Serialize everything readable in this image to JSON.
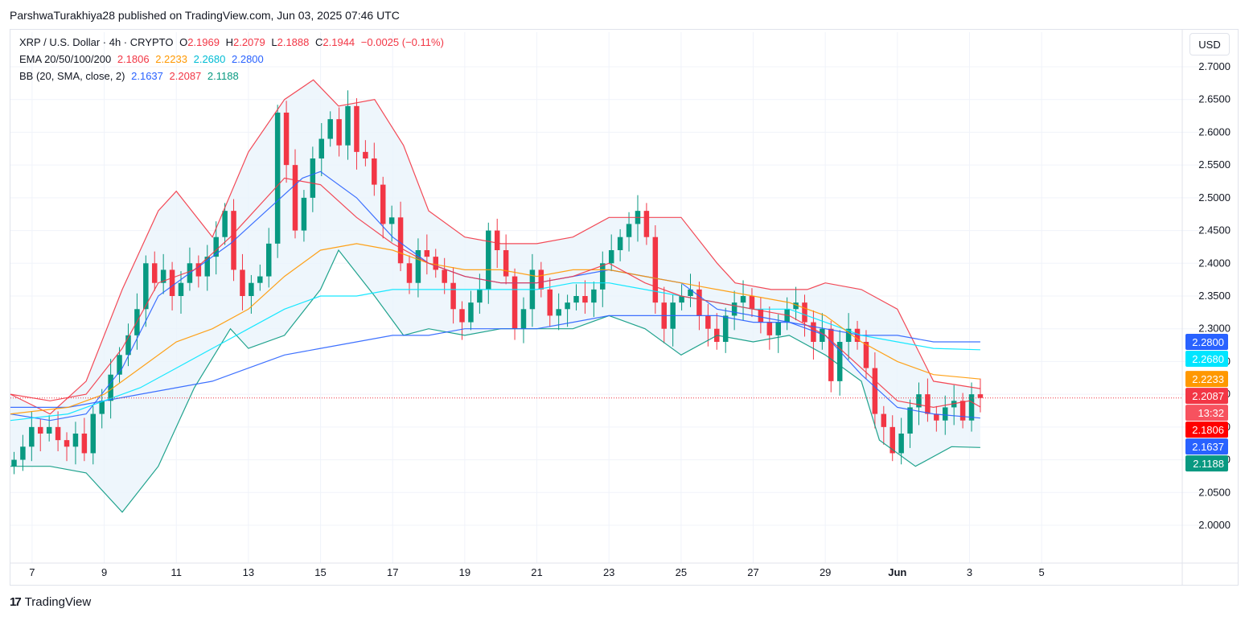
{
  "header": {
    "attribution": "ParshwaTurakhiya28 published on TradingView.com, Jun 03, 2025 07:46 UTC"
  },
  "legend": {
    "symbol": "XRP / U.S. Dollar · 4h · CRYPTO",
    "o_label": "O",
    "o_value": "2.1969",
    "h_label": "H",
    "h_value": "2.2079",
    "l_label": "L",
    "l_value": "2.1888",
    "c_label": "C",
    "c_value": "2.1944",
    "change": "−0.0025 (−0.11%)",
    "ema_label": "EMA 20/50/100/200",
    "ema_values": [
      "2.1806",
      "2.2233",
      "2.2680",
      "2.2800"
    ],
    "bb_label": "BB (20, SMA, close, 2)",
    "bb_values": [
      "2.1637",
      "2.2087",
      "2.1188"
    ]
  },
  "currency_button": "USD",
  "footer": {
    "logo_text": "TradingView",
    "logo_mark": "17"
  },
  "colors": {
    "up": "#089981",
    "down": "#f23645",
    "ema20": "#f23645",
    "ema50": "#ff9800",
    "ema100": "#00e5ff",
    "ema200": "#2962ff",
    "bb_basis": "#2962ff",
    "bb_upper": "#f23645",
    "bb_lower": "#089981",
    "bb_fill": "#eaf4fb"
  },
  "chart_data": {
    "type": "candlestick",
    "title": "XRP / U.S. Dollar · 4h · CRYPTO",
    "ylim": [
      1.96,
      2.74
    ],
    "y_ticks": [
      "2.0000",
      "2.0500",
      "2.1000",
      "2.1500",
      "2.2000",
      "2.2500",
      "2.3000",
      "2.3500",
      "2.4000",
      "2.4500",
      "2.5000",
      "2.5500",
      "2.6000",
      "2.6500",
      "2.7000"
    ],
    "x_ticks": [
      "7",
      "9",
      "11",
      "13",
      "15",
      "17",
      "19",
      "21",
      "23",
      "25",
      "27",
      "29",
      "Jun",
      "3",
      "5"
    ],
    "x_tick_days": [
      7,
      9,
      11,
      13,
      15,
      17,
      19,
      21,
      23,
      25,
      27,
      29,
      31,
      33,
      35
    ],
    "x_range_days": [
      6.4,
      38.9
    ],
    "price_labels": [
      {
        "text": "2.2800",
        "value": 2.28,
        "color": "#2962ff"
      },
      {
        "text": "2.2680",
        "value": 2.268,
        "color": "#00e5ff"
      },
      {
        "text": "2.2233",
        "value": 2.2233,
        "color": "#ff9800"
      },
      {
        "text": "2.2087",
        "value": 2.2087,
        "color": "#f23645"
      },
      {
        "text": "13:32",
        "value": 2.1944,
        "color": "#f7525f"
      },
      {
        "text": "2.1806",
        "value": 2.1806,
        "color": "#ff0000"
      },
      {
        "text": "2.1637",
        "value": 2.1637,
        "color": "#2962ff"
      },
      {
        "text": "2.1188",
        "value": 2.1188,
        "color": "#089981"
      }
    ],
    "last_price": 2.1944,
    "candle_closes": [
      2.1,
      2.12,
      2.15,
      2.14,
      2.15,
      2.13,
      2.12,
      2.14,
      2.11,
      2.17,
      2.19,
      2.23,
      2.26,
      2.29,
      2.33,
      2.4,
      2.37,
      2.39,
      2.35,
      2.37,
      2.4,
      2.38,
      2.41,
      2.44,
      2.48,
      2.39,
      2.35,
      2.37,
      2.38,
      2.43,
      2.63,
      2.55,
      2.45,
      2.5,
      2.56,
      2.59,
      2.62,
      2.58,
      2.64,
      2.57,
      2.56,
      2.52,
      2.46,
      2.47,
      2.4,
      2.37,
      2.42,
      2.41,
      2.39,
      2.37,
      2.33,
      2.31,
      2.34,
      2.36,
      2.45,
      2.42,
      2.38,
      2.3,
      2.33,
      2.39,
      2.36,
      2.32,
      2.33,
      2.34,
      2.35,
      2.34,
      2.36,
      2.4,
      2.42,
      2.44,
      2.46,
      2.48,
      2.44,
      2.34,
      2.3,
      2.34,
      2.35,
      2.36,
      2.32,
      2.3,
      2.28,
      2.32,
      2.34,
      2.35,
      2.33,
      2.31,
      2.29,
      2.31,
      2.33,
      2.34,
      2.31,
      2.28,
      2.3,
      2.22,
      2.28,
      2.3,
      2.28,
      2.24,
      2.17,
      2.15,
      2.11,
      2.14,
      2.18,
      2.2,
      2.17,
      2.16,
      2.18,
      2.19,
      2.16,
      2.2,
      2.1944
    ],
    "ema20": [
      [
        6.4,
        2.2
      ],
      [
        7.5,
        2.19
      ],
      [
        8.5,
        2.2
      ],
      [
        9.5,
        2.27
      ],
      [
        10.5,
        2.37
      ],
      [
        11.5,
        2.39
      ],
      [
        12.5,
        2.44
      ],
      [
        13,
        2.47
      ],
      [
        14,
        2.53
      ],
      [
        15,
        2.52
      ],
      [
        16,
        2.47
      ],
      [
        17,
        2.43
      ],
      [
        18,
        2.4
      ],
      [
        19,
        2.38
      ],
      [
        20,
        2.37
      ],
      [
        21,
        2.37
      ],
      [
        22,
        2.38
      ],
      [
        23,
        2.4
      ],
      [
        24,
        2.37
      ],
      [
        25,
        2.35
      ],
      [
        26,
        2.34
      ],
      [
        27,
        2.33
      ],
      [
        28,
        2.32
      ],
      [
        29,
        2.29
      ],
      [
        30,
        2.24
      ],
      [
        31,
        2.19
      ],
      [
        32,
        2.18
      ],
      [
        33,
        2.19
      ],
      [
        33.3,
        2.1806
      ]
    ],
    "ema50": [
      [
        6.4,
        2.17
      ],
      [
        8,
        2.18
      ],
      [
        9,
        2.2
      ],
      [
        10,
        2.24
      ],
      [
        11,
        2.28
      ],
      [
        12,
        2.3
      ],
      [
        13,
        2.33
      ],
      [
        14,
        2.38
      ],
      [
        15,
        2.42
      ],
      [
        16,
        2.43
      ],
      [
        17,
        2.42
      ],
      [
        18,
        2.4
      ],
      [
        19,
        2.39
      ],
      [
        20,
        2.39
      ],
      [
        21,
        2.38
      ],
      [
        22,
        2.39
      ],
      [
        23,
        2.39
      ],
      [
        24,
        2.38
      ],
      [
        25,
        2.37
      ],
      [
        26,
        2.36
      ],
      [
        27,
        2.35
      ],
      [
        28,
        2.34
      ],
      [
        29,
        2.32
      ],
      [
        30,
        2.28
      ],
      [
        31,
        2.25
      ],
      [
        32,
        2.23
      ],
      [
        33.3,
        2.2233
      ]
    ],
    "ema100": [
      [
        6.4,
        2.16
      ],
      [
        8,
        2.17
      ],
      [
        9,
        2.19
      ],
      [
        10,
        2.21
      ],
      [
        11,
        2.24
      ],
      [
        12,
        2.27
      ],
      [
        13,
        2.3
      ],
      [
        14,
        2.33
      ],
      [
        15,
        2.35
      ],
      [
        16,
        2.35
      ],
      [
        17,
        2.36
      ],
      [
        18,
        2.36
      ],
      [
        19,
        2.36
      ],
      [
        20,
        2.36
      ],
      [
        21,
        2.36
      ],
      [
        22,
        2.37
      ],
      [
        23,
        2.37
      ],
      [
        24,
        2.36
      ],
      [
        25,
        2.35
      ],
      [
        26,
        2.34
      ],
      [
        27,
        2.33
      ],
      [
        28,
        2.33
      ],
      [
        29,
        2.31
      ],
      [
        30,
        2.29
      ],
      [
        31,
        2.28
      ],
      [
        32,
        2.27
      ],
      [
        33.3,
        2.268
      ]
    ],
    "ema200": [
      [
        6.4,
        2.18
      ],
      [
        8,
        2.18
      ],
      [
        9,
        2.19
      ],
      [
        10,
        2.2
      ],
      [
        11,
        2.21
      ],
      [
        12,
        2.22
      ],
      [
        13,
        2.24
      ],
      [
        14,
        2.26
      ],
      [
        15,
        2.27
      ],
      [
        16,
        2.28
      ],
      [
        17,
        2.29
      ],
      [
        18,
        2.29
      ],
      [
        19,
        2.3
      ],
      [
        20,
        2.3
      ],
      [
        21,
        2.3
      ],
      [
        22,
        2.31
      ],
      [
        23,
        2.32
      ],
      [
        24,
        2.32
      ],
      [
        25,
        2.32
      ],
      [
        26,
        2.32
      ],
      [
        27,
        2.31
      ],
      [
        28,
        2.31
      ],
      [
        29,
        2.3
      ],
      [
        30,
        2.29
      ],
      [
        31,
        2.29
      ],
      [
        32,
        2.28
      ],
      [
        33.3,
        2.28
      ]
    ],
    "bb_upper": [
      [
        6.4,
        2.2
      ],
      [
        7.5,
        2.17
      ],
      [
        8.5,
        2.22
      ],
      [
        9.5,
        2.36
      ],
      [
        10.5,
        2.48
      ],
      [
        11,
        2.51
      ],
      [
        12,
        2.44
      ],
      [
        13,
        2.57
      ],
      [
        14,
        2.65
      ],
      [
        14.8,
        2.68
      ],
      [
        15.5,
        2.64
      ],
      [
        16.5,
        2.65
      ],
      [
        17.3,
        2.58
      ],
      [
        18,
        2.48
      ],
      [
        19,
        2.44
      ],
      [
        20,
        2.43
      ],
      [
        21,
        2.43
      ],
      [
        22,
        2.44
      ],
      [
        23,
        2.47
      ],
      [
        24,
        2.47
      ],
      [
        25,
        2.47
      ],
      [
        26,
        2.4
      ],
      [
        26.5,
        2.37
      ],
      [
        27.5,
        2.36
      ],
      [
        28.5,
        2.36
      ],
      [
        29,
        2.37
      ],
      [
        30,
        2.36
      ],
      [
        31,
        2.33
      ],
      [
        32,
        2.22
      ],
      [
        33.3,
        2.2087
      ]
    ],
    "bb_basis": [
      [
        6.4,
        2.17
      ],
      [
        7.5,
        2.16
      ],
      [
        8.5,
        2.17
      ],
      [
        9.5,
        2.24
      ],
      [
        10.5,
        2.35
      ],
      [
        11.5,
        2.39
      ],
      [
        12.5,
        2.43
      ],
      [
        13.5,
        2.48
      ],
      [
        14.5,
        2.53
      ],
      [
        15,
        2.54
      ],
      [
        16,
        2.5
      ],
      [
        17,
        2.44
      ],
      [
        18,
        2.4
      ],
      [
        19,
        2.38
      ],
      [
        20,
        2.37
      ],
      [
        21,
        2.37
      ],
      [
        22,
        2.38
      ],
      [
        23,
        2.39
      ],
      [
        24,
        2.38
      ],
      [
        25,
        2.37
      ],
      [
        26,
        2.33
      ],
      [
        27,
        2.32
      ],
      [
        28,
        2.31
      ],
      [
        29,
        2.29
      ],
      [
        30,
        2.23
      ],
      [
        31,
        2.18
      ],
      [
        32,
        2.17
      ],
      [
        33.3,
        2.1637
      ]
    ],
    "bb_lower": [
      [
        6.4,
        2.09
      ],
      [
        7.5,
        2.09
      ],
      [
        8.5,
        2.08
      ],
      [
        9.5,
        2.02
      ],
      [
        10.5,
        2.09
      ],
      [
        11.5,
        2.21
      ],
      [
        12.5,
        2.3
      ],
      [
        13,
        2.27
      ],
      [
        14,
        2.29
      ],
      [
        15,
        2.36
      ],
      [
        15.5,
        2.42
      ],
      [
        16.5,
        2.35
      ],
      [
        17.3,
        2.29
      ],
      [
        18,
        2.3
      ],
      [
        19,
        2.29
      ],
      [
        20,
        2.3
      ],
      [
        21,
        2.3
      ],
      [
        22,
        2.3
      ],
      [
        23,
        2.32
      ],
      [
        24,
        2.3
      ],
      [
        25,
        2.26
      ],
      [
        26,
        2.29
      ],
      [
        27,
        2.28
      ],
      [
        28,
        2.29
      ],
      [
        29,
        2.26
      ],
      [
        30,
        2.22
      ],
      [
        30.5,
        2.13
      ],
      [
        31.5,
        2.09
      ],
      [
        32.5,
        2.12
      ],
      [
        33.3,
        2.1188
      ]
    ]
  }
}
